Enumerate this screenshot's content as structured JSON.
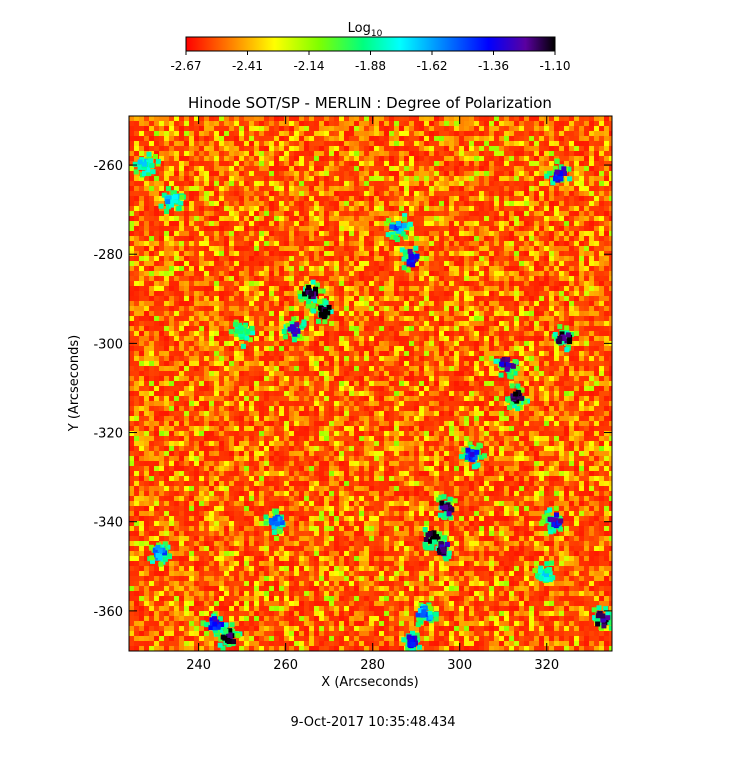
{
  "chart_data": {
    "type": "heatmap",
    "title": "Hinode SOT/SP - MERLIN : Degree of Polarization",
    "xlabel": "X (Arcseconds)",
    "ylabel": "Y (Arcseconds)",
    "xlim": [
      224,
      335
    ],
    "ylim": [
      -369,
      -249
    ],
    "x_ticks": [
      240,
      260,
      280,
      300,
      320
    ],
    "y_ticks": [
      -260,
      -280,
      -300,
      -320,
      -340,
      -360
    ],
    "colorbar": {
      "label": "Log",
      "label_subscript": "10",
      "ticks": [
        "-2.67",
        "-2.41",
        "-2.14",
        "-1.88",
        "-1.62",
        "-1.36",
        "-1.10"
      ],
      "range": [
        -2.67,
        -1.1
      ],
      "colormap": [
        "#ff0000",
        "#ff7f00",
        "#ffff00",
        "#7fff00",
        "#00ff7f",
        "#00ffff",
        "#0080ff",
        "#0000ff",
        "#5a00a0",
        "#000000"
      ]
    },
    "background_level": -2.6,
    "features": [
      {
        "x": 266,
        "y": -289,
        "level": -1.2
      },
      {
        "x": 269,
        "y": -293,
        "level": -1.15
      },
      {
        "x": 262,
        "y": -297,
        "level": -1.4
      },
      {
        "x": 289,
        "y": -281,
        "level": -1.45
      },
      {
        "x": 286,
        "y": -274,
        "level": -1.7
      },
      {
        "x": 324,
        "y": -299,
        "level": -1.25
      },
      {
        "x": 313,
        "y": -312,
        "level": -1.2
      },
      {
        "x": 311,
        "y": -305,
        "level": -1.4
      },
      {
        "x": 303,
        "y": -325,
        "level": -1.55
      },
      {
        "x": 297,
        "y": -337,
        "level": -1.3
      },
      {
        "x": 294,
        "y": -344,
        "level": -1.15
      },
      {
        "x": 296,
        "y": -346,
        "level": -1.3
      },
      {
        "x": 247,
        "y": -366,
        "level": -1.2
      },
      {
        "x": 244,
        "y": -363,
        "level": -1.5
      },
      {
        "x": 322,
        "y": -340,
        "level": -1.45
      },
      {
        "x": 323,
        "y": -262,
        "level": -1.5
      },
      {
        "x": 333,
        "y": -362,
        "level": -1.3
      },
      {
        "x": 289,
        "y": -367,
        "level": -1.5
      },
      {
        "x": 292,
        "y": -361,
        "level": -1.7
      },
      {
        "x": 231,
        "y": -347,
        "level": -1.7
      },
      {
        "x": 234,
        "y": -268,
        "level": -1.8
      },
      {
        "x": 258,
        "y": -340,
        "level": -1.7
      },
      {
        "x": 228,
        "y": -260,
        "level": -1.9
      },
      {
        "x": 250,
        "y": -298,
        "level": -2.0
      },
      {
        "x": 320,
        "y": -352,
        "level": -1.9
      }
    ]
  },
  "footer": {
    "timestamp": "9-Oct-2017 10:35:48.434"
  }
}
